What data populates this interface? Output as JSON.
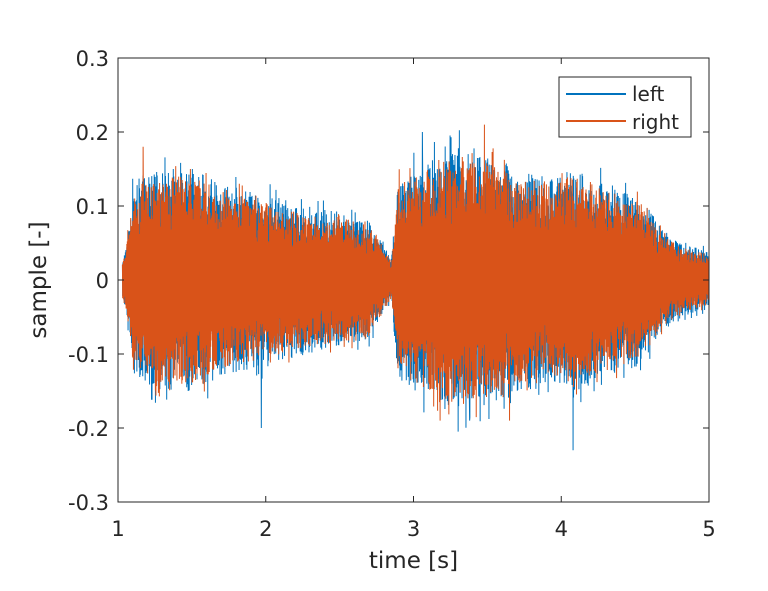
{
  "chart_data": {
    "type": "line",
    "xlabel": "time [s]",
    "ylabel": "sample [-]",
    "xlim": [
      1,
      5
    ],
    "ylim": [
      -0.3,
      0.3
    ],
    "xticks": [
      1,
      2,
      3,
      4,
      5
    ],
    "yticks": [
      -0.3,
      -0.2,
      -0.1,
      0,
      0.1,
      0.2,
      0.3
    ],
    "ytick_labels": [
      "-0.3",
      "-0.2",
      "-0.1",
      "0",
      "0.1",
      "0.2",
      "0.3"
    ],
    "grid": false,
    "legend": "top-right",
    "series": [
      {
        "name": "left",
        "color": "#0072BD",
        "envelope_x": [
          1.0,
          1.05,
          1.1,
          1.15,
          1.3,
          1.5,
          1.7,
          1.9,
          2.1,
          2.3,
          2.5,
          2.7,
          2.85,
          2.9,
          3.1,
          3.3,
          3.5,
          3.7,
          3.9,
          4.1,
          4.3,
          4.5,
          4.65,
          4.8,
          5.0
        ],
        "envelope_y": [
          0.0,
          0.04,
          0.12,
          0.14,
          0.15,
          0.15,
          0.13,
          0.12,
          0.11,
          0.1,
          0.09,
          0.08,
          0.03,
          0.14,
          0.16,
          0.18,
          0.17,
          0.15,
          0.14,
          0.15,
          0.13,
          0.12,
          0.08,
          0.05,
          0.04
        ],
        "peaks": [
          {
            "x": 3.06,
            "y": 0.2
          },
          {
            "x": 1.97,
            "y": -0.2
          },
          {
            "x": 4.08,
            "y": -0.23
          },
          {
            "x": 3.38,
            "y": -0.19
          }
        ]
      },
      {
        "name": "right",
        "color": "#D95319",
        "envelope_x": [
          1.0,
          1.05,
          1.1,
          1.15,
          1.3,
          1.5,
          1.7,
          1.9,
          2.1,
          2.3,
          2.5,
          2.7,
          2.85,
          2.9,
          3.1,
          3.3,
          3.5,
          3.7,
          3.9,
          4.1,
          4.3,
          4.5,
          4.65,
          4.8,
          5.0
        ],
        "envelope_y": [
          0.0,
          0.04,
          0.11,
          0.13,
          0.14,
          0.14,
          0.12,
          0.11,
          0.1,
          0.09,
          0.085,
          0.075,
          0.025,
          0.13,
          0.15,
          0.17,
          0.16,
          0.14,
          0.13,
          0.14,
          0.12,
          0.11,
          0.07,
          0.045,
          0.035
        ],
        "peaks": [
          {
            "x": 3.48,
            "y": 0.21
          },
          {
            "x": 1.17,
            "y": 0.18
          },
          {
            "x": 3.18,
            "y": -0.19
          },
          {
            "x": 3.65,
            "y": -0.19
          }
        ]
      }
    ]
  }
}
